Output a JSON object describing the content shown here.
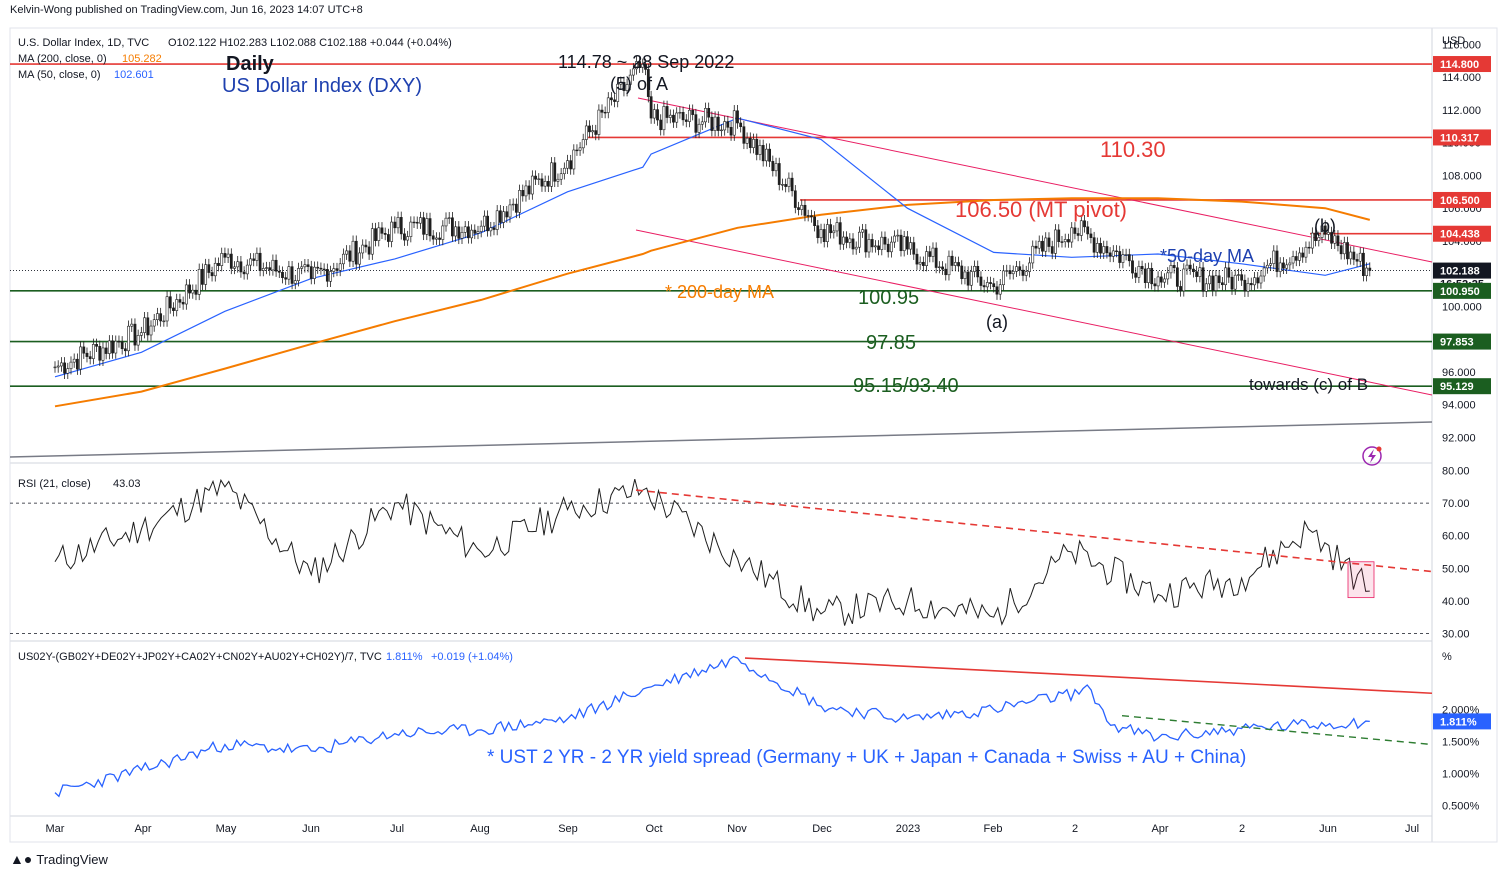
{
  "header": {
    "publisher": "Kelvin-Wong published on TradingView.com, Jun 16, 2023 14:07 UTC+8"
  },
  "footer": {
    "brand": "TradingView"
  },
  "colors": {
    "price": "#1e1e1e",
    "ma200": "#f57c00",
    "ma50": "#2962ff",
    "red_level": "#e53935",
    "green_level": "#1b5e20",
    "channel": "#e91e63",
    "rsi": "#1e1e1e",
    "spread": "#2962ff",
    "neutral_line": "#787b86"
  },
  "price_pane": {
    "legend": {
      "symbol": "U.S. Dollar Index, 1D, TVC",
      "ohlc": "O102.122  H102.283  L102.088  C102.188  +0.044 (+0.04%)",
      "ma200_label": "MA (200, close, 0)",
      "ma200_value": "105.282",
      "ma50_label": "MA (50, close, 0)",
      "ma50_value": "102.601"
    },
    "title": "Daily",
    "subtitle": "US Dollar Index (DXY)",
    "currency": "USD",
    "y_ticks": [
      "116.000",
      "114.000",
      "112.000",
      "110.000",
      "108.000",
      "106.000",
      "104.000",
      "102.000",
      "100.000",
      "98.000",
      "96.000",
      "94.000",
      "92.000"
    ],
    "annotations": {
      "peak": "114.78 ~ 28 Sep 2022",
      "wave_5a": "(5) of A",
      "level_110": "110.30",
      "mt_pivot": "106.50 (MT pivot)",
      "ma50_note": "*50-day MA",
      "ma200_note": "* 200-day MA",
      "level_100": "100.95",
      "wave_a": "(a)",
      "wave_b": "(b)",
      "level_97": "97.85",
      "level_95": "95.15/93.40",
      "target": "towards (c) of B"
    },
    "price_labels": {
      "l114": "114.800",
      "l110": "110.317",
      "l106": "106.500",
      "l104": "104.438",
      "last": "102.188",
      "countdown": "16:52:25",
      "l100": "100.950",
      "l97": "97.853",
      "l95": "95.129"
    }
  },
  "rsi_pane": {
    "legend_label": "RSI (21, close)",
    "legend_value": "43.03",
    "y_ticks": [
      "80.00",
      "70.00",
      "60.00",
      "50.00",
      "40.00",
      "30.00"
    ]
  },
  "spread_pane": {
    "legend_label": "US02Y-(GB02Y+DE02Y+JP02Y+CA02Y+CN02Y+AU02Y+CH02Y)/7, TVC",
    "legend_value": "1.811%",
    "legend_change": "+0.019 (+1.04%)",
    "unit": "%",
    "y_ticks": [
      "2.000%",
      "1.500%",
      "1.000%",
      "0.500%"
    ],
    "last_label": "1.811%",
    "note": "* UST 2 YR - 2 YR yield spread (Germany + UK + Japan + Canada + Swiss + AU + China)"
  },
  "x_axis": {
    "labels": [
      "Mar",
      "Apr",
      "May",
      "Jun",
      "Jul",
      "Aug",
      "Sep",
      "Oct",
      "Nov",
      "Dec",
      "2023",
      "Feb",
      "2",
      "Apr",
      "2",
      "Jun",
      "Jul"
    ]
  },
  "chart_data": [
    {
      "type": "line",
      "title": "US Dollar Index (DXY)",
      "x": [
        "2022-03-01",
        "2022-04-01",
        "2022-05-01",
        "2022-06-01",
        "2022-07-01",
        "2022-08-01",
        "2022-09-01",
        "2022-09-28",
        "2022-10-01",
        "2022-11-01",
        "2022-12-01",
        "2023-01-01",
        "2023-02-01",
        "2023-03-01",
        "2023-04-01",
        "2023-05-01",
        "2023-05-31",
        "2023-06-16"
      ],
      "series": [
        {
          "name": "U.S. Dollar Index",
          "values": [
            96.3,
            98.4,
            103.0,
            101.7,
            104.8,
            104.9,
            108.9,
            114.78,
            111.5,
            111.2,
            104.7,
            103.5,
            101.2,
            104.8,
            101.8,
            101.6,
            104.4,
            102.19
          ]
        },
        {
          "name": "MA (200, close, 0)",
          "values": [
            93.9,
            94.8,
            96.2,
            97.7,
            99.1,
            100.4,
            102.0,
            103.2,
            103.4,
            104.8,
            105.6,
            106.2,
            106.5,
            106.6,
            106.6,
            106.4,
            106.0,
            105.28
          ]
        },
        {
          "name": "MA (50, close, 0)",
          "values": [
            95.7,
            97.2,
            99.7,
            101.7,
            102.9,
            104.5,
            107.0,
            108.5,
            109.3,
            111.5,
            110.2,
            106.0,
            103.3,
            103.0,
            103.2,
            102.6,
            101.9,
            102.6
          ]
        }
      ],
      "levels": [
        114.8,
        110.317,
        106.5,
        104.438,
        100.95,
        97.853,
        95.129
      ],
      "ylim": [
        90.5,
        117.0
      ]
    },
    {
      "type": "line",
      "title": "RSI (21, close)",
      "x": [
        "2022-03-01",
        "2022-04-01",
        "2022-05-01",
        "2022-06-01",
        "2022-07-01",
        "2022-08-01",
        "2022-09-01",
        "2022-09-28",
        "2022-11-01",
        "2022-12-01",
        "2023-01-01",
        "2023-02-01",
        "2023-03-01",
        "2023-04-01",
        "2023-05-01",
        "2023-05-25",
        "2023-06-16"
      ],
      "series": [
        {
          "name": "RSI (21, close)",
          "values": [
            52,
            62,
            75,
            48,
            70,
            55,
            68,
            74,
            53,
            36,
            40,
            35,
            55,
            42,
            47,
            62,
            43
          ]
        }
      ],
      "levels": [
        70,
        30
      ],
      "ylim": [
        28,
        82
      ]
    },
    {
      "type": "line",
      "title": "US02Y-(GB02Y+DE02Y+JP02Y+CA02Y+CN02Y+AU02Y+CH02Y)/7, TVC",
      "x": [
        "2022-03-01",
        "2022-04-01",
        "2022-05-01",
        "2022-06-01",
        "2022-07-01",
        "2022-08-01",
        "2022-09-01",
        "2022-10-01",
        "2022-11-01",
        "2022-12-01",
        "2023-01-01",
        "2023-02-01",
        "2023-03-08",
        "2023-03-15",
        "2023-04-01",
        "2023-05-01",
        "2023-06-16"
      ],
      "series": [
        {
          "name": "spread",
          "values": [
            0.7,
            1.05,
            1.45,
            1.35,
            1.62,
            1.68,
            1.85,
            2.35,
            2.8,
            2.05,
            1.85,
            2.0,
            2.3,
            1.75,
            1.55,
            1.7,
            1.811
          ]
        }
      ],
      "ylim": [
        0.35,
        3.05
      ]
    }
  ]
}
